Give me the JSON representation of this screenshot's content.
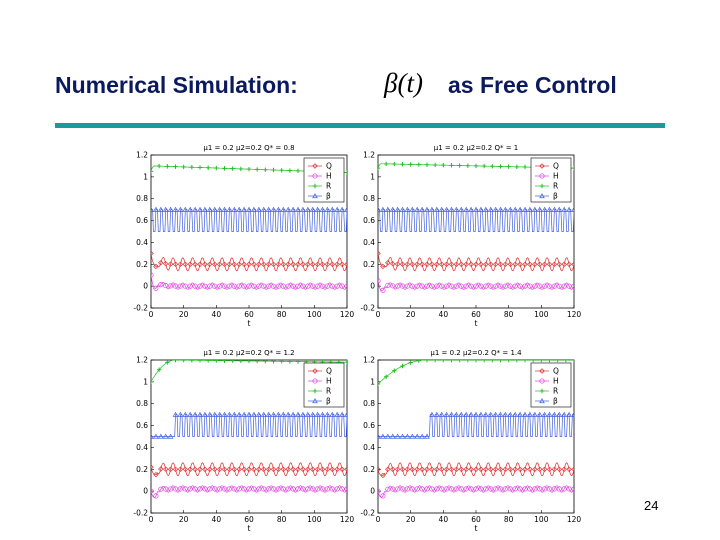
{
  "slide": {
    "title_left": "Numerical Simulation:",
    "title_symbol": "β(t)",
    "title_right": "as Free Control",
    "page_number": "24"
  },
  "colors": {
    "title": "#0b1a5c",
    "rule": "#1a9a9a",
    "Q": "#e03030",
    "H": "#e040e0",
    "R": "#20c020",
    "beta": "#4060e0"
  },
  "chart_data": [
    {
      "type": "line",
      "title": "μ1 = 0.2   μ2=0.2   Q* = 0.8",
      "xlabel": "t",
      "xlim": [
        0,
        120
      ],
      "ylim": [
        -0.2,
        1.2
      ],
      "xticks": [
        0,
        20,
        40,
        60,
        80,
        100,
        120
      ],
      "yticks": [
        -0.2,
        0,
        0.2,
        0.4,
        0.6,
        0.8,
        1,
        1.2
      ],
      "legend": {
        "position": "top-right",
        "entries": [
          "Q",
          "H",
          "R",
          "β"
        ]
      },
      "series": [
        {
          "key": "R",
          "name": "R",
          "marker": "plus",
          "start": 1.05,
          "plateau": 1.1,
          "rise": 2,
          "end": 1.04
        },
        {
          "key": "beta",
          "name": "β",
          "marker": "triangle",
          "low": 0.5,
          "high": 0.7,
          "onset": 0,
          "period": 3
        },
        {
          "key": "Q",
          "name": "Q",
          "marker": "diamond",
          "mean": 0.2,
          "amp": 0.06,
          "period": 6,
          "start": 0.3
        },
        {
          "key": "H",
          "name": "H",
          "marker": "circle",
          "mean": 0.0,
          "amp": 0.03,
          "period": 6,
          "start": 0.1
        }
      ]
    },
    {
      "type": "line",
      "title": "μ1 = 0.2   μ2=0.2   Q* = 1",
      "xlabel": "t",
      "xlim": [
        0,
        120
      ],
      "ylim": [
        -0.2,
        1.2
      ],
      "xticks": [
        0,
        20,
        40,
        60,
        80,
        100,
        120
      ],
      "yticks": [
        -0.2,
        0,
        0.2,
        0.4,
        0.6,
        0.8,
        1,
        1.2
      ],
      "legend": {
        "position": "top-right",
        "entries": [
          "Q",
          "H",
          "R",
          "β"
        ]
      },
      "series": [
        {
          "key": "R",
          "name": "R",
          "marker": "plus",
          "start": 1.08,
          "plateau": 1.12,
          "rise": 2,
          "end": 1.08
        },
        {
          "key": "beta",
          "name": "β",
          "marker": "triangle",
          "low": 0.5,
          "high": 0.7,
          "onset": 0,
          "period": 3
        },
        {
          "key": "Q",
          "name": "Q",
          "marker": "diamond",
          "mean": 0.2,
          "amp": 0.06,
          "period": 6,
          "start": 0.3
        },
        {
          "key": "H",
          "name": "H",
          "marker": "circle",
          "mean": 0.0,
          "amp": 0.03,
          "period": 6,
          "start": 0.05
        }
      ]
    },
    {
      "type": "line",
      "title": "μ1 = 0.2   μ2=0.2   Q* = 1.2",
      "xlabel": "t",
      "xlim": [
        0,
        120
      ],
      "ylim": [
        -0.2,
        1.2
      ],
      "xticks": [
        0,
        20,
        40,
        60,
        80,
        100,
        120
      ],
      "yticks": [
        -0.2,
        0,
        0.2,
        0.4,
        0.6,
        0.8,
        1,
        1.2
      ],
      "legend": {
        "position": "top-right",
        "entries": [
          "Q",
          "H",
          "R",
          "β"
        ]
      },
      "series": [
        {
          "key": "R",
          "name": "R",
          "marker": "plus",
          "start": 1.0,
          "plateau": 1.2,
          "rise": 15,
          "end": 1.18
        },
        {
          "key": "beta",
          "name": "β",
          "marker": "triangle",
          "low": 0.5,
          "high": 0.7,
          "onset": 15,
          "period": 3
        },
        {
          "key": "Q",
          "name": "Q",
          "marker": "diamond",
          "mean": 0.2,
          "amp": 0.06,
          "period": 6,
          "start": 0.22
        },
        {
          "key": "H",
          "name": "H",
          "marker": "circle",
          "mean": 0.02,
          "amp": 0.03,
          "period": 6,
          "start": 0.0
        }
      ]
    },
    {
      "type": "line",
      "title": "μ1 = 0.2   μ2=0.2   Q* = 1.4",
      "xlabel": "t",
      "xlim": [
        0,
        120
      ],
      "ylim": [
        -0.2,
        1.2
      ],
      "xticks": [
        0,
        20,
        40,
        60,
        80,
        100,
        120
      ],
      "yticks": [
        -0.2,
        0,
        0.2,
        0.4,
        0.6,
        0.8,
        1,
        1.2
      ],
      "legend": {
        "position": "top-right",
        "entries": [
          "Q",
          "H",
          "R",
          "β"
        ]
      },
      "series": [
        {
          "key": "R",
          "name": "R",
          "marker": "plus",
          "start": 0.98,
          "plateau": 1.2,
          "rise": 30,
          "end": 1.2
        },
        {
          "key": "beta",
          "name": "β",
          "marker": "triangle",
          "low": 0.5,
          "high": 0.7,
          "onset": 32,
          "period": 3
        },
        {
          "key": "Q",
          "name": "Q",
          "marker": "diamond",
          "mean": 0.2,
          "amp": 0.06,
          "period": 6,
          "start": 0.2
        },
        {
          "key": "H",
          "name": "H",
          "marker": "circle",
          "mean": 0.02,
          "amp": 0.03,
          "period": 6,
          "start": 0.0
        }
      ]
    }
  ]
}
